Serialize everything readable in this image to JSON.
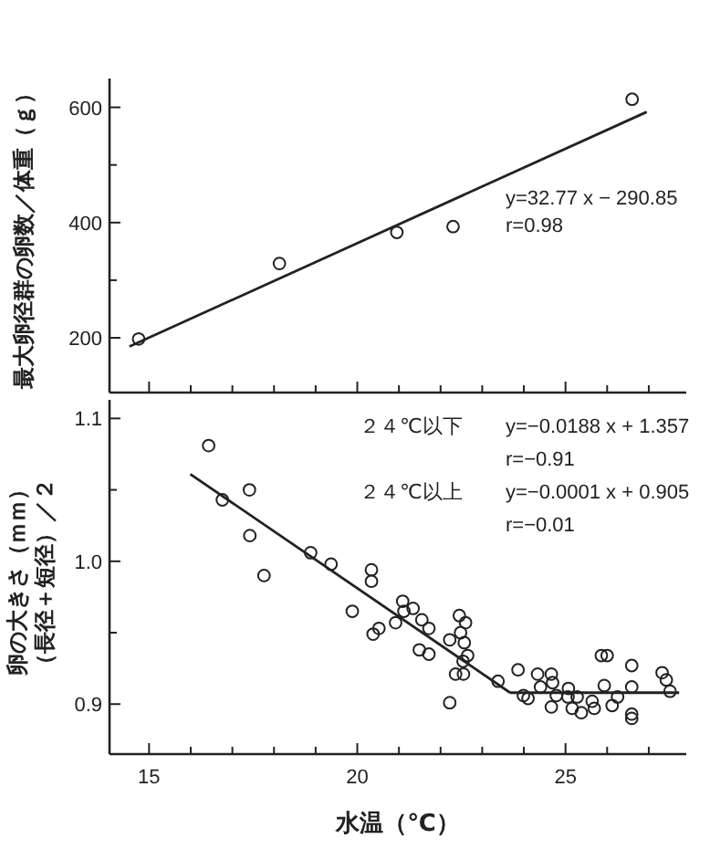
{
  "chart_data": [
    {
      "type": "scatter",
      "ylabel": "最大卵径群の卵数／体重（ｇ）",
      "xlim": [
        14.05,
        27.9
      ],
      "ylim": [
        105,
        650
      ],
      "xticks": [
        15,
        {
          "value": 16,
          "label": null
        },
        {
          "value": 17,
          "label": null
        },
        {
          "value": 18,
          "label": null
        },
        {
          "value": 19,
          "label": null
        },
        20,
        {
          "value": 21,
          "label": null
        },
        {
          "value": 22,
          "label": null
        },
        {
          "value": 23,
          "label": null
        },
        {
          "value": 24,
          "label": null
        },
        25,
        {
          "value": 26,
          "label": null
        },
        {
          "value": 27,
          "label": null
        }
      ],
      "yticks": [
        200,
        {
          "value": 300,
          "label": null
        },
        400,
        {
          "value": 500,
          "label": null
        },
        600
      ],
      "tick_labels": "y",
      "grid": false,
      "series": [
        {
          "color": "#222222",
          "marker": "circle",
          "x": [
            14.75,
            18.13,
            20.95,
            22.3,
            26.6
          ],
          "values": [
            198,
            329,
            383,
            393,
            614
          ]
        },
        {
          "type": "line",
          "color": "#222222",
          "line_style": "solid",
          "x": [
            14.53,
            26.95
          ],
          "values": [
            185,
            592
          ]
        }
      ],
      "annotations": [
        "y=32.77 x − 290.85",
        "r=0.98"
      ]
    },
    {
      "type": "scatter",
      "xlabel": "水温（℃）",
      "ylabel": "卵の大きさ（ｍｍ）（長径＋短径）／２",
      "xlim": [
        14.05,
        27.9
      ],
      "ylim": [
        0.865,
        1.113
      ],
      "xticks": [
        15,
        {
          "value": 16,
          "label": null
        },
        {
          "value": 17,
          "label": null
        },
        {
          "value": 18,
          "label": null
        },
        {
          "value": 19,
          "label": null
        },
        20,
        {
          "value": 21,
          "label": null
        },
        {
          "value": 22,
          "label": null
        },
        {
          "value": 23,
          "label": null
        },
        {
          "value": 24,
          "label": null
        },
        25,
        {
          "value": 26,
          "label": null
        },
        {
          "value": 27,
          "label": null
        }
      ],
      "yticks": [
        0.9,
        {
          "value": 0.95,
          "label": null
        },
        {
          "value": 1.0,
          "label": "1.0"
        },
        {
          "value": 1.05,
          "label": null
        },
        1.1
      ],
      "grid": false,
      "series": [
        {
          "color": "#222222",
          "marker": "circle",
          "x": [
            16.43,
            16.76,
            17.41,
            17.42,
            17.76,
            18.88,
            19.37,
            19.88,
            20.34,
            20.34,
            20.38,
            20.52,
            20.92,
            21.09,
            21.12,
            21.34,
            21.55,
            21.49,
            21.72,
            21.72,
            22.22,
            22.22,
            22.36,
            22.45,
            22.48,
            22.57,
            22.6,
            22.65,
            22.54,
            22.55,
            23.38,
            23.86,
            23.99,
            24.1,
            24.33,
            24.4,
            24.66,
            24.69,
            24.66,
            24.78,
            25.07,
            25.06,
            25.16,
            25.28,
            25.38,
            25.64,
            25.69,
            25.86,
            26.0,
            25.93,
            26.12,
            26.25,
            26.59,
            26.59,
            26.59,
            26.59,
            27.32,
            27.42,
            27.51
          ],
          "values": [
            1.081,
            1.043,
            1.05,
            1.018,
            0.99,
            1.006,
            0.998,
            0.965,
            0.994,
            0.986,
            0.949,
            0.953,
            0.957,
            0.972,
            0.965,
            0.967,
            0.959,
            0.938,
            0.953,
            0.935,
            0.945,
            0.901,
            0.921,
            0.962,
            0.95,
            0.943,
            0.957,
            0.934,
            0.93,
            0.921,
            0.916,
            0.924,
            0.906,
            0.904,
            0.921,
            0.912,
            0.921,
            0.915,
            0.898,
            0.906,
            0.911,
            0.905,
            0.897,
            0.905,
            0.894,
            0.902,
            0.897,
            0.934,
            0.934,
            0.913,
            0.899,
            0.905,
            0.927,
            0.893,
            0.89,
            0.912,
            0.922,
            0.917,
            0.909
          ]
        },
        {
          "type": "line",
          "color": "#222222",
          "line_style": "solid",
          "x": [
            15.99,
            23.67
          ],
          "values": [
            1.061,
            0.908
          ]
        },
        {
          "type": "line",
          "color": "#222222",
          "line_style": "solid",
          "x": [
            23.67,
            27.73
          ],
          "values": [
            0.908,
            0.908
          ]
        }
      ],
      "annotations": [
        "２４℃以下",
        "y=−0.0188 x + 1.357",
        "r=−0.91",
        "２４℃以上",
        "y=−0.0001 x + 0.905",
        "r=−0.01"
      ]
    }
  ]
}
